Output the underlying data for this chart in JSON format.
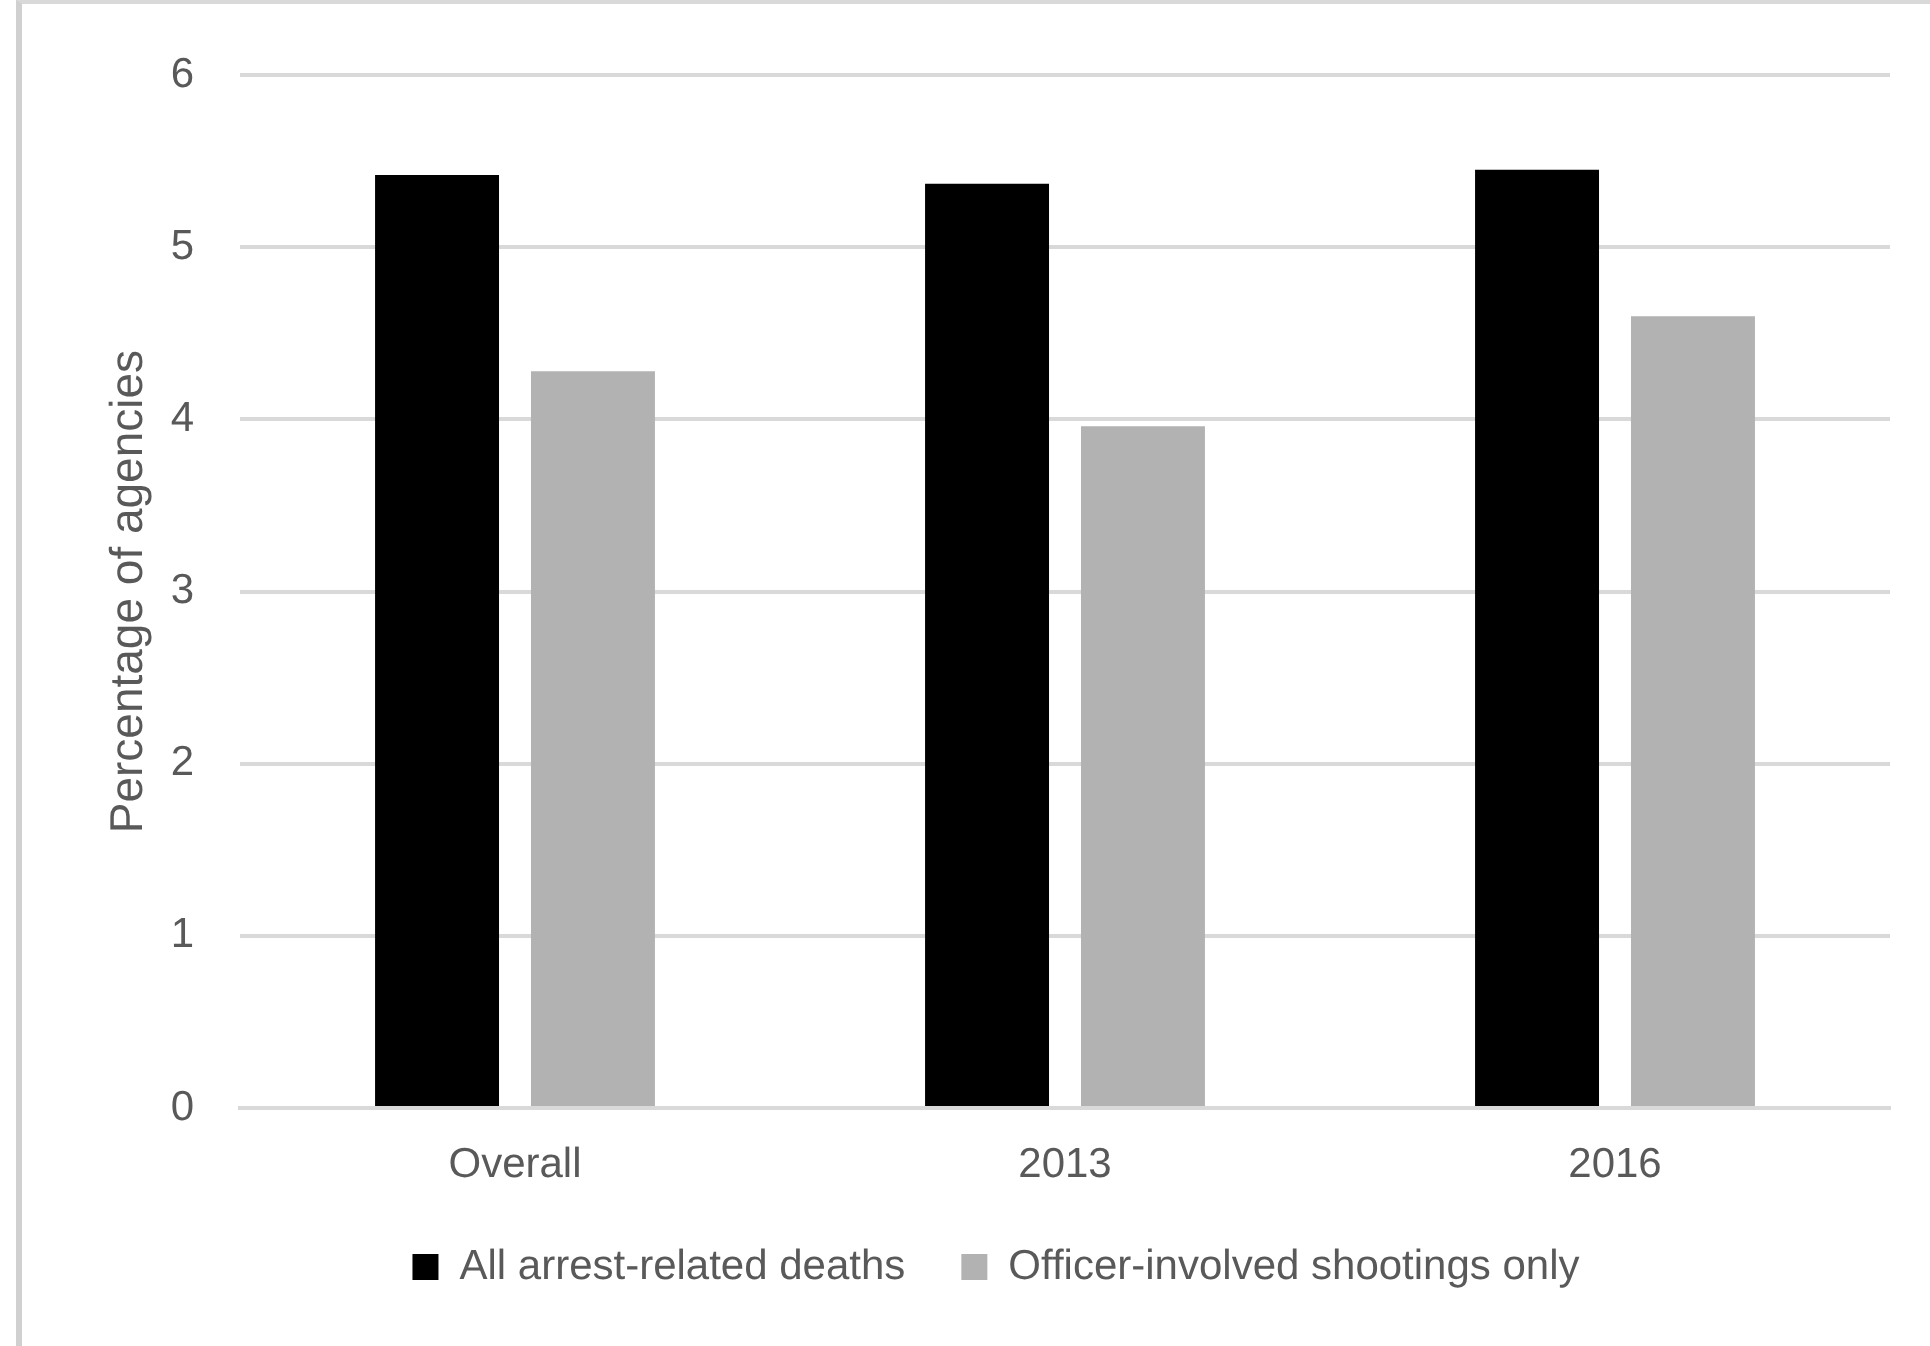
{
  "chart_data": {
    "type": "bar",
    "ylabel": "Percentage of agencies",
    "categories": [
      "Overall",
      "2013",
      "2016"
    ],
    "series": [
      {
        "name": "All arrest-related deaths",
        "color": "#000000",
        "values": [
          5.42,
          5.37,
          5.45
        ]
      },
      {
        "name": "Officer-involved shootings only",
        "color": "#b2b2b2",
        "values": [
          4.28,
          3.96,
          4.6
        ]
      }
    ],
    "ylim": [
      0,
      6
    ],
    "yticks": [
      0,
      1,
      2,
      3,
      4,
      5,
      6
    ],
    "grid": "y",
    "legend": "bottom"
  }
}
